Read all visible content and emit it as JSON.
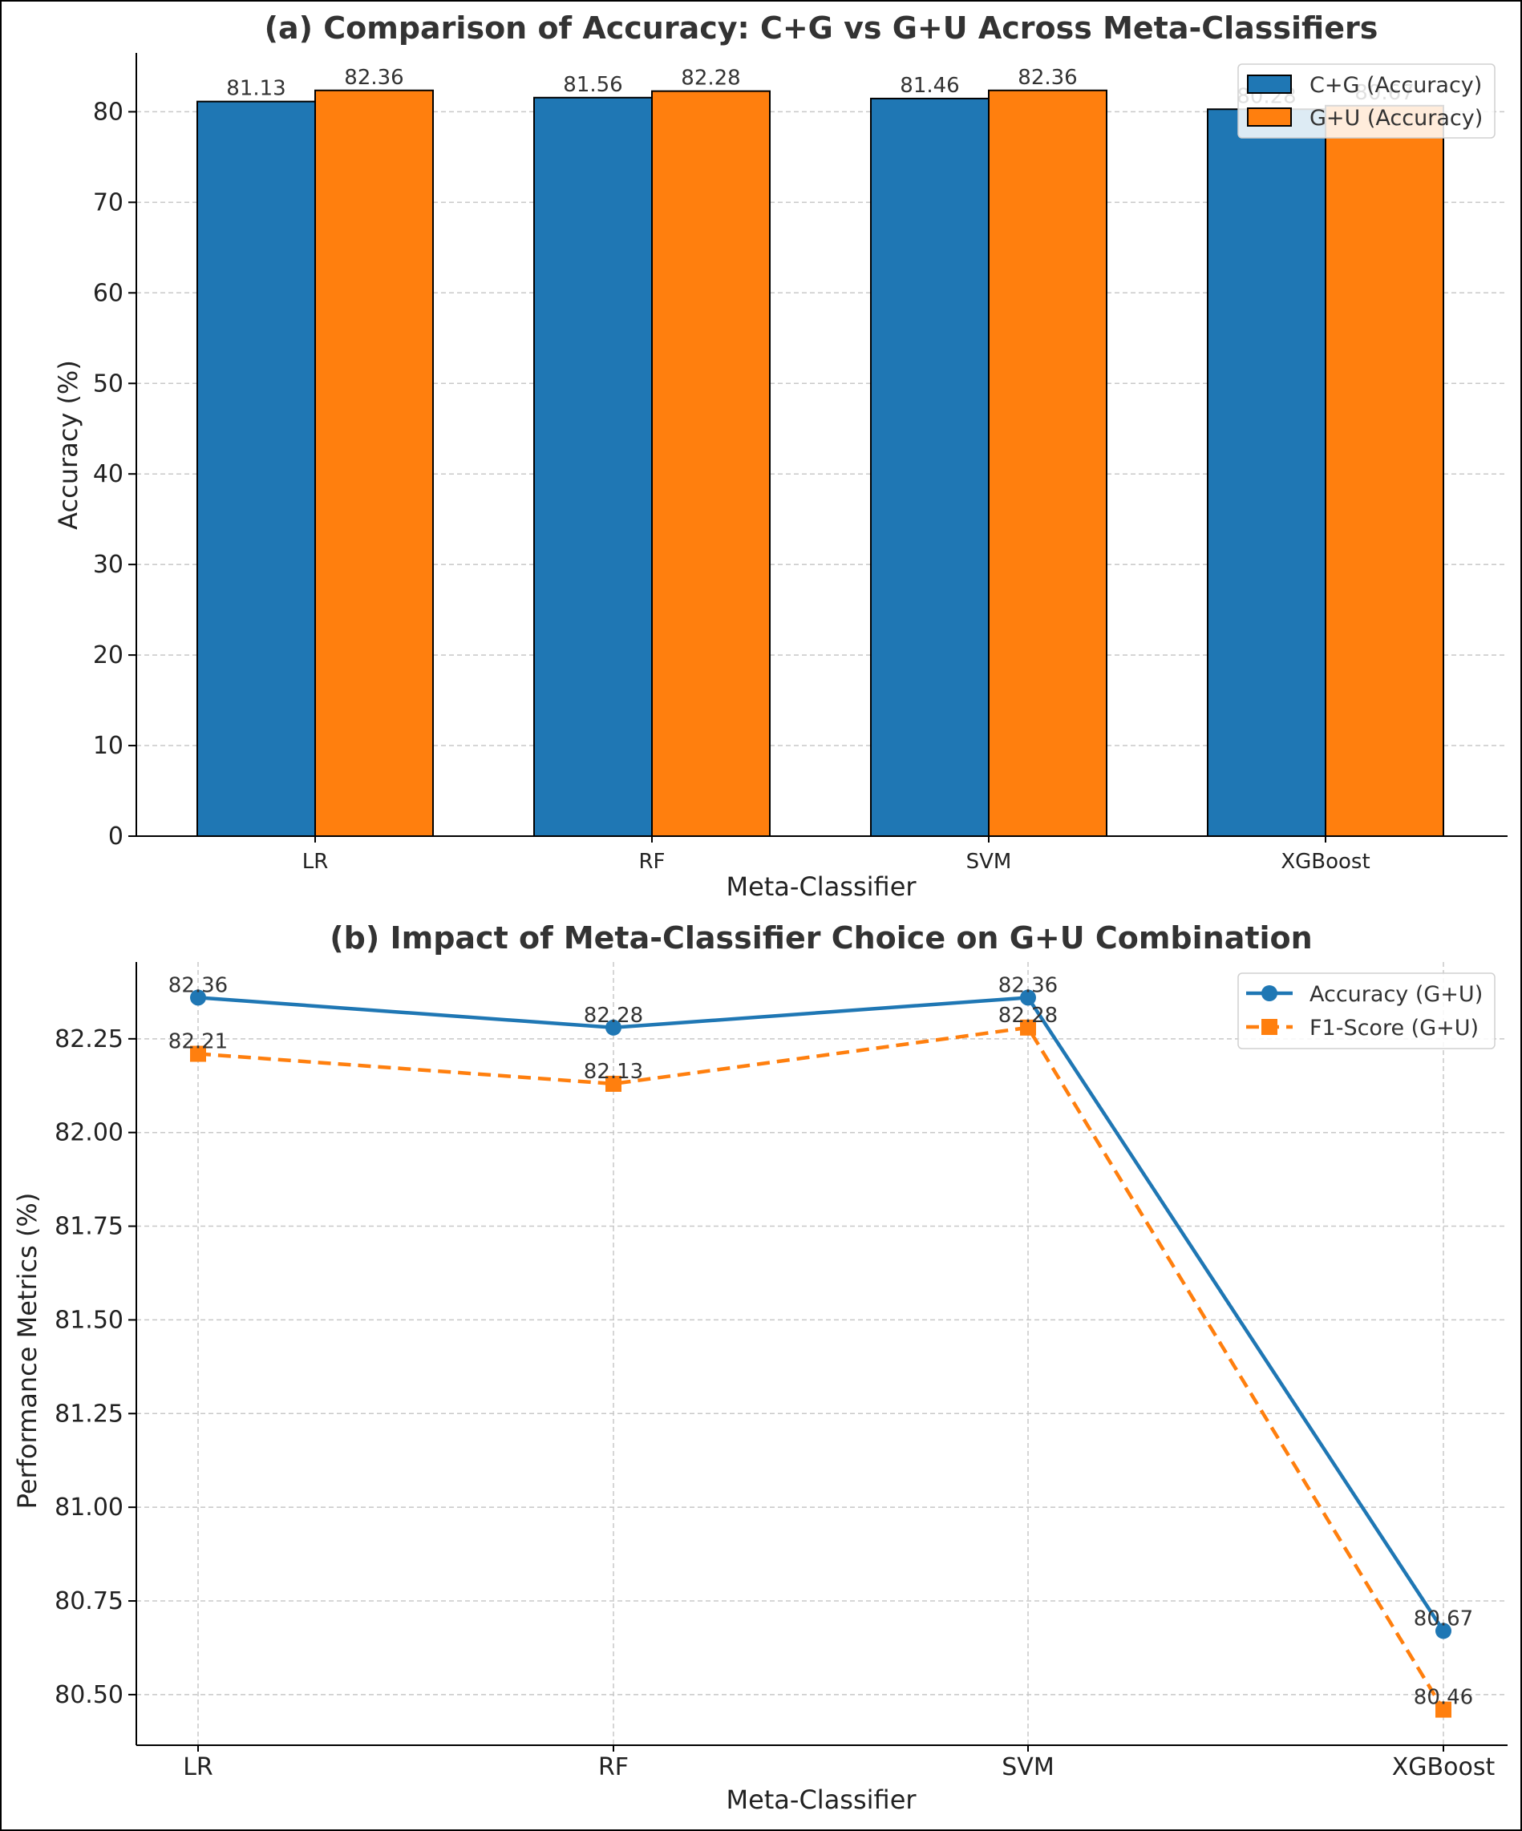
{
  "chart_data": [
    {
      "type": "bar",
      "title": "(a) Comparison of Accuracy: C+G vs G+U Across Meta-Classifiers",
      "xlabel": "Meta-Classifier",
      "ylabel": "Accuracy (%)",
      "categories": [
        "LR",
        "RF",
        "SVM",
        "XGBoost"
      ],
      "series": [
        {
          "name": "C+G (Accuracy)",
          "values": [
            81.13,
            81.56,
            81.46,
            80.28
          ],
          "color": "#1f77b4"
        },
        {
          "name": "G+U (Accuracy)",
          "values": [
            82.36,
            82.28,
            82.36,
            80.67
          ],
          "color": "#ff7f0e"
        }
      ],
      "ylim": [
        0,
        86.5
      ],
      "yticks": [
        0,
        10,
        20,
        30,
        40,
        50,
        60,
        70,
        80
      ],
      "grid": "y-dashed",
      "legend": "top-right"
    },
    {
      "type": "line",
      "title": "(b) Impact of Meta-Classifier Choice on G+U Combination",
      "xlabel": "Meta-Classifier",
      "ylabel": "Performance Metrics (%)",
      "categories": [
        "LR",
        "RF",
        "SVM",
        "XGBoost"
      ],
      "series": [
        {
          "name": "Accuracy (G+U)",
          "values": [
            82.36,
            82.28,
            82.36,
            80.67
          ],
          "color": "#1f77b4",
          "marker": "circle",
          "style": "solid"
        },
        {
          "name": "F1-Score (G+U)",
          "values": [
            82.21,
            82.13,
            82.28,
            80.46
          ],
          "color": "#ff7f0e",
          "marker": "square",
          "style": "dashed"
        }
      ],
      "ylim": [
        80.365,
        82.455
      ],
      "yticks": [
        "80.50",
        "80.75",
        "81.00",
        "81.25",
        "81.50",
        "81.75",
        "82.00",
        "82.25"
      ],
      "grid": "both-dashed",
      "legend": "top-right"
    }
  ]
}
